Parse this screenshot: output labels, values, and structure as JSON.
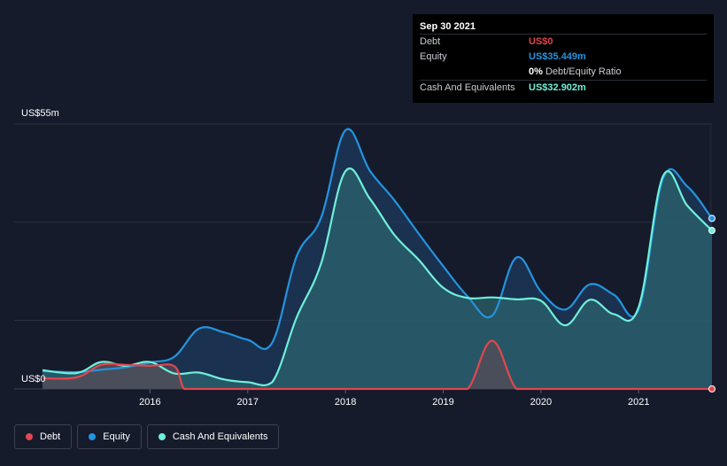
{
  "colors": {
    "background": "#151b2b",
    "debt": "#e2464e",
    "equity": "#2394df",
    "cash": "#6ff0da",
    "grid": "#2c3242"
  },
  "tooltip": {
    "date": "Sep 30 2021",
    "rows": [
      {
        "label": "Debt",
        "value": "US$0",
        "color": "#e2464e"
      },
      {
        "label": "Equity",
        "value": "US$35.449m",
        "color": "#2394df"
      },
      {
        "label": "",
        "value": "0%",
        "sub": "Debt/Equity Ratio",
        "color": "#ffffff"
      },
      {
        "label": "Cash And Equivalents",
        "value": "US$32.902m",
        "color": "#6ff0da"
      }
    ]
  },
  "legend": [
    {
      "label": "Debt",
      "color": "#e2464e"
    },
    {
      "label": "Equity",
      "color": "#2394df"
    },
    {
      "label": "Cash And Equivalents",
      "color": "#6ff0da"
    }
  ],
  "chart_data": {
    "type": "area",
    "ylim": [
      0,
      55
    ],
    "ymax_label": "US$55m",
    "ymin_label": "US$0",
    "xlim": [
      2014.9,
      2021.75
    ],
    "x_ticks": [
      "2016",
      "2017",
      "2018",
      "2019",
      "2020",
      "2021"
    ],
    "x_tick_values": [
      2016,
      2017,
      2018,
      2019,
      2020,
      2021
    ],
    "grid": true,
    "legend_position": "bottom-left",
    "series": [
      {
        "name": "Equity",
        "x": [
          2014.9,
          2015.25,
          2015.5,
          2015.75,
          2016.0,
          2016.25,
          2016.5,
          2016.75,
          2017.0,
          2017.25,
          2017.5,
          2017.75,
          2018.0,
          2018.25,
          2018.5,
          2018.75,
          2019.0,
          2019.25,
          2019.5,
          2019.75,
          2020.0,
          2020.25,
          2020.5,
          2020.75,
          2021.0,
          2021.25,
          2021.5,
          2021.75
        ],
        "values": [
          3.7,
          3.5,
          4.0,
          4.5,
          5.5,
          6.7,
          12.5,
          11.8,
          10.2,
          9.6,
          27.5,
          35.5,
          53.7,
          45.3,
          39.2,
          32.2,
          25.5,
          19.2,
          15.2,
          27.3,
          20.2,
          16.5,
          21.7,
          19.5,
          16.5,
          43.7,
          42.0,
          35.4
        ]
      },
      {
        "name": "Cash And Equivalents",
        "x": [
          2014.9,
          2015.25,
          2015.5,
          2015.75,
          2016.0,
          2016.25,
          2016.5,
          2016.75,
          2017.0,
          2017.25,
          2017.5,
          2017.75,
          2018.0,
          2018.25,
          2018.5,
          2018.75,
          2019.0,
          2019.25,
          2019.5,
          2019.75,
          2020.0,
          2020.25,
          2020.5,
          2020.75,
          2021.0,
          2021.25,
          2021.5,
          2021.75
        ],
        "values": [
          3.9,
          3.3,
          5.6,
          4.8,
          5.6,
          3.2,
          3.4,
          2.0,
          1.4,
          1.4,
          14.8,
          26.0,
          45.2,
          39.5,
          32.0,
          26.8,
          21.0,
          18.9,
          19.0,
          18.6,
          18.3,
          13.2,
          18.5,
          15.5,
          17.0,
          44.2,
          38.0,
          32.9
        ]
      },
      {
        "name": "Debt",
        "x": [
          2014.9,
          2015.25,
          2015.5,
          2015.75,
          2016.0,
          2016.25,
          2016.35,
          2016.5,
          2016.75,
          2017.0,
          2017.25,
          2017.5,
          2017.75,
          2018.0,
          2018.25,
          2018.5,
          2018.75,
          2019.0,
          2019.25,
          2019.5,
          2019.75,
          2020.0,
          2020.25,
          2020.5,
          2020.75,
          2021.0,
          2021.25,
          2021.5,
          2021.75
        ],
        "values": [
          2.2,
          2.4,
          5.0,
          5.0,
          4.8,
          4.7,
          0,
          0,
          0,
          0,
          0,
          0,
          0,
          0,
          0,
          0,
          0,
          0,
          0,
          10.0,
          0,
          0,
          0,
          0,
          0,
          0,
          0,
          0,
          0
        ]
      }
    ]
  }
}
